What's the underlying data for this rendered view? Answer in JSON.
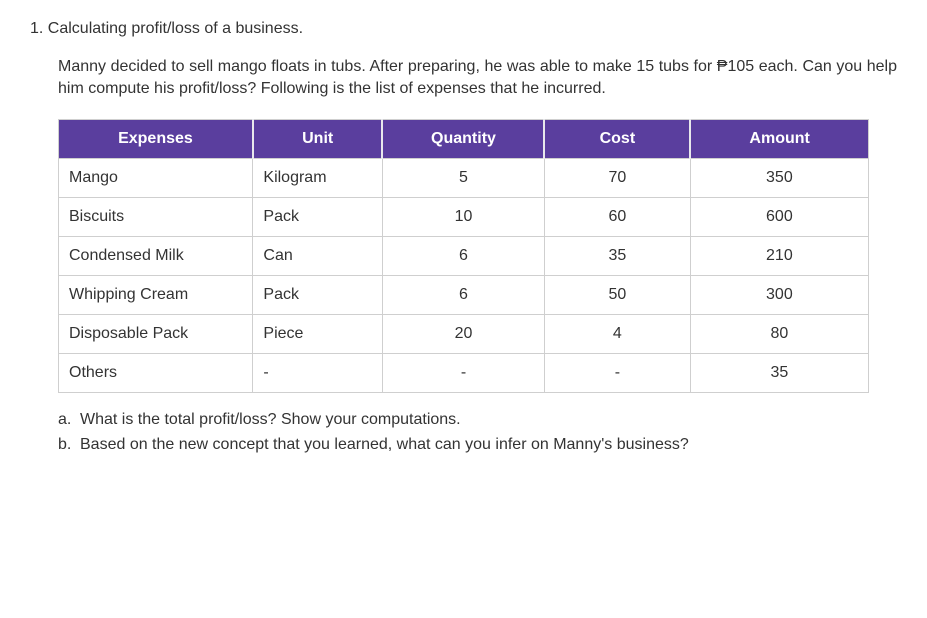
{
  "question": {
    "number": "1.",
    "title": "Calculating profit/loss of a business.",
    "body": "Manny decided to sell mango floats in tubs. After preparing, he was able to make 15 tubs for ₱105 each. Can you help him compute his profit/loss? Following is the list of expenses that he incurred."
  },
  "table": {
    "header_bg": "#5a3e9e",
    "header_fg": "#ffffff",
    "border_color": "#cfcfcf",
    "columns": [
      {
        "label": "Expenses",
        "align": "left",
        "width": "24%"
      },
      {
        "label": "Unit",
        "align": "left",
        "width": "16%"
      },
      {
        "label": "Quantity",
        "align": "center",
        "width": "20%"
      },
      {
        "label": "Cost",
        "align": "center",
        "width": "18%"
      },
      {
        "label": "Amount",
        "align": "center",
        "width": "22%"
      }
    ],
    "rows": [
      {
        "expense": "Mango",
        "unit": "Kilogram",
        "quantity": "5",
        "cost": "70",
        "amount": "350"
      },
      {
        "expense": "Biscuits",
        "unit": "Pack",
        "quantity": "10",
        "cost": "60",
        "amount": "600"
      },
      {
        "expense": "Condensed Milk",
        "unit": "Can",
        "quantity": "6",
        "cost": "35",
        "amount": "210"
      },
      {
        "expense": "Whipping Cream",
        "unit": "Pack",
        "quantity": "6",
        "cost": "50",
        "amount": "300"
      },
      {
        "expense": "Disposable Pack",
        "unit": "Piece",
        "quantity": "20",
        "cost": "4",
        "amount": "80"
      },
      {
        "expense": "Others",
        "unit": "-",
        "quantity": "-",
        "cost": "-",
        "amount": "35"
      }
    ]
  },
  "sub_questions": [
    {
      "letter": "a.",
      "text": "What is the total profit/loss? Show your computations."
    },
    {
      "letter": "b.",
      "text": "Based on the new concept that you learned, what can you infer on Manny's business?"
    }
  ]
}
